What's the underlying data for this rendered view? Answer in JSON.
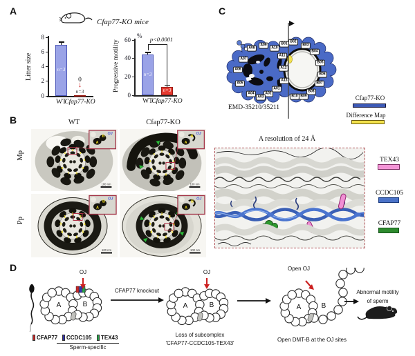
{
  "panelA": {
    "label": "A",
    "mice_title": "Cfap77-KO mice"
  },
  "chart_data": [
    {
      "type": "bar",
      "ylabel": "Litter size",
      "categories": [
        "WT",
        "Cfap77-KO"
      ],
      "values": [
        7,
        0.12
      ],
      "errors": [
        0.3,
        0
      ],
      "bar_labels": [
        "n=3",
        "n=3"
      ],
      "bar_label_inside": [
        true,
        false
      ],
      "ylim": [
        0,
        8
      ],
      "yticks": [
        0,
        2,
        4,
        6,
        8
      ],
      "annotation_zero": "0",
      "bar_colors": [
        "#9aa3e7",
        "#e63a30"
      ],
      "bar_border_colors": [
        "#4d58b8",
        "#9c1f18"
      ]
    },
    {
      "type": "bar",
      "ylabel": "Progressive motility",
      "unit": "%",
      "categories": [
        "WT",
        "Cfap77-KO"
      ],
      "values": [
        44,
        9
      ],
      "errors": [
        2,
        1.5
      ],
      "bar_labels": [
        "n=3",
        "n=3"
      ],
      "bar_label_inside": [
        true,
        true
      ],
      "ylim": [
        0,
        60
      ],
      "yticks": [
        0,
        20,
        40,
        60
      ],
      "significance": "p<0.0001",
      "bar_colors": [
        "#9aa3e7",
        "#e63a30"
      ],
      "bar_border_colors": [
        "#4d58b8",
        "#9c1f18"
      ]
    }
  ],
  "panelB": {
    "label": "B",
    "col_headers": [
      "WT",
      "Cfap77-KO"
    ],
    "row_labels": [
      "Mp",
      "Pp"
    ],
    "doublet_numbers": [
      "1",
      "2",
      "3",
      "4",
      "5",
      "6",
      "7",
      "8",
      "9"
    ],
    "inset": {
      "oj": "OJ",
      "a": "A",
      "b": "B"
    },
    "scale_bar": "100 nm"
  },
  "panelC": {
    "label": "C",
    "emd_label": "EMD-35210/35211",
    "pf_labels": [
      "A08",
      "A09",
      "A10",
      "A11",
      "A12",
      "A13",
      "A01",
      "A02",
      "A03",
      "A04",
      "A05",
      "A06",
      "A07",
      "B01",
      "B02",
      "B03",
      "B04",
      "B05",
      "B06",
      "B07",
      "B08",
      "B09",
      "B10"
    ],
    "map_legend": [
      {
        "label": "Cfap77-KO",
        "color": "#3c59b6"
      },
      {
        "label": "Difference Map",
        "color": "#f3e24c"
      }
    ],
    "resolution_title": "A resolution of 24 Å",
    "structure_legend": [
      {
        "label": "TEX43",
        "color": "#f394d6"
      },
      {
        "label": "CCDC105",
        "color": "#4a72c8"
      },
      {
        "label": "CFAP77",
        "color": "#2e8b2e"
      }
    ]
  },
  "panelD": {
    "label": "D",
    "oj_label": "OJ",
    "open_oj_label": "Open OJ",
    "tubule_a": "A",
    "tubule_b": "B",
    "arrow_label": "CFAP77 knockout",
    "legend": [
      {
        "label": "CFAP77",
        "color": "#c62828"
      },
      {
        "label": "CCDC105",
        "color": "#3430b0"
      },
      {
        "label": "TEX43",
        "color": "#27a349"
      }
    ],
    "sperm_specific": "Sperm-specific",
    "loss_caption_line1": "Loss of subcomplex",
    "loss_caption_line2": "'CFAP77-CCDC105-TEX43'",
    "open_caption": "Open DMT-B at the OJ sites",
    "outcome_line1": "Abnormal motility",
    "outcome_line2": "of sperm"
  }
}
